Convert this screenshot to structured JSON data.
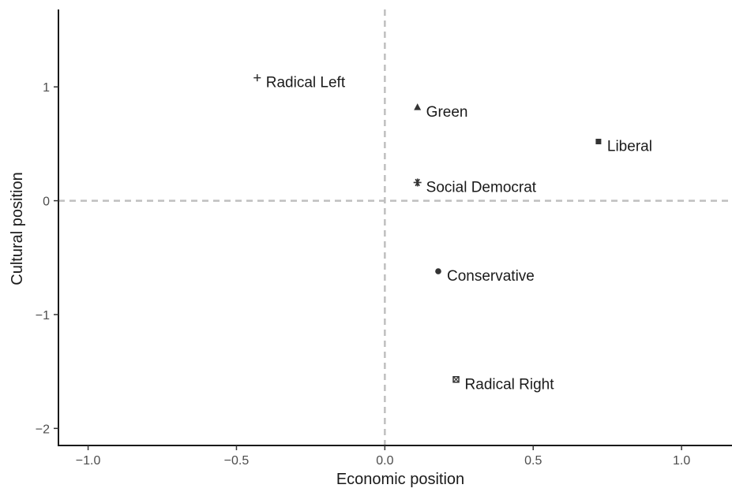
{
  "chart_data": {
    "type": "scatter",
    "title": "",
    "xlabel": "Economic position",
    "ylabel": "Cultural position",
    "xlim": [
      -1.1,
      1.17
    ],
    "ylim": [
      -2.15,
      1.68
    ],
    "x_ticks": [
      -1.0,
      -0.5,
      0.0,
      0.5,
      1.0
    ],
    "x_tick_labels": [
      "−1.0",
      "−0.5",
      "0.0",
      "0.5",
      "1.0"
    ],
    "y_ticks": [
      1,
      0,
      -1,
      -2
    ],
    "y_tick_labels": [
      "1",
      "0",
      "−1",
      "−2"
    ],
    "reference_lines": {
      "x": 0,
      "y": 0,
      "style": "dashed",
      "color": "#bfbfbf"
    },
    "grid": false,
    "legend": "none",
    "points": [
      {
        "label": "Radical Left",
        "x": -0.43,
        "y": 1.08,
        "marker": "plus"
      },
      {
        "label": "Green",
        "x": 0.11,
        "y": 0.82,
        "marker": "triangle"
      },
      {
        "label": "Liberal",
        "x": 0.72,
        "y": 0.52,
        "marker": "square"
      },
      {
        "label": "Social Democrat",
        "x": 0.11,
        "y": 0.16,
        "marker": "asterisk"
      },
      {
        "label": "Conservative",
        "x": 0.18,
        "y": -0.62,
        "marker": "circle"
      },
      {
        "label": "Radical Right",
        "x": 0.24,
        "y": -1.57,
        "marker": "boxed-x"
      }
    ]
  }
}
